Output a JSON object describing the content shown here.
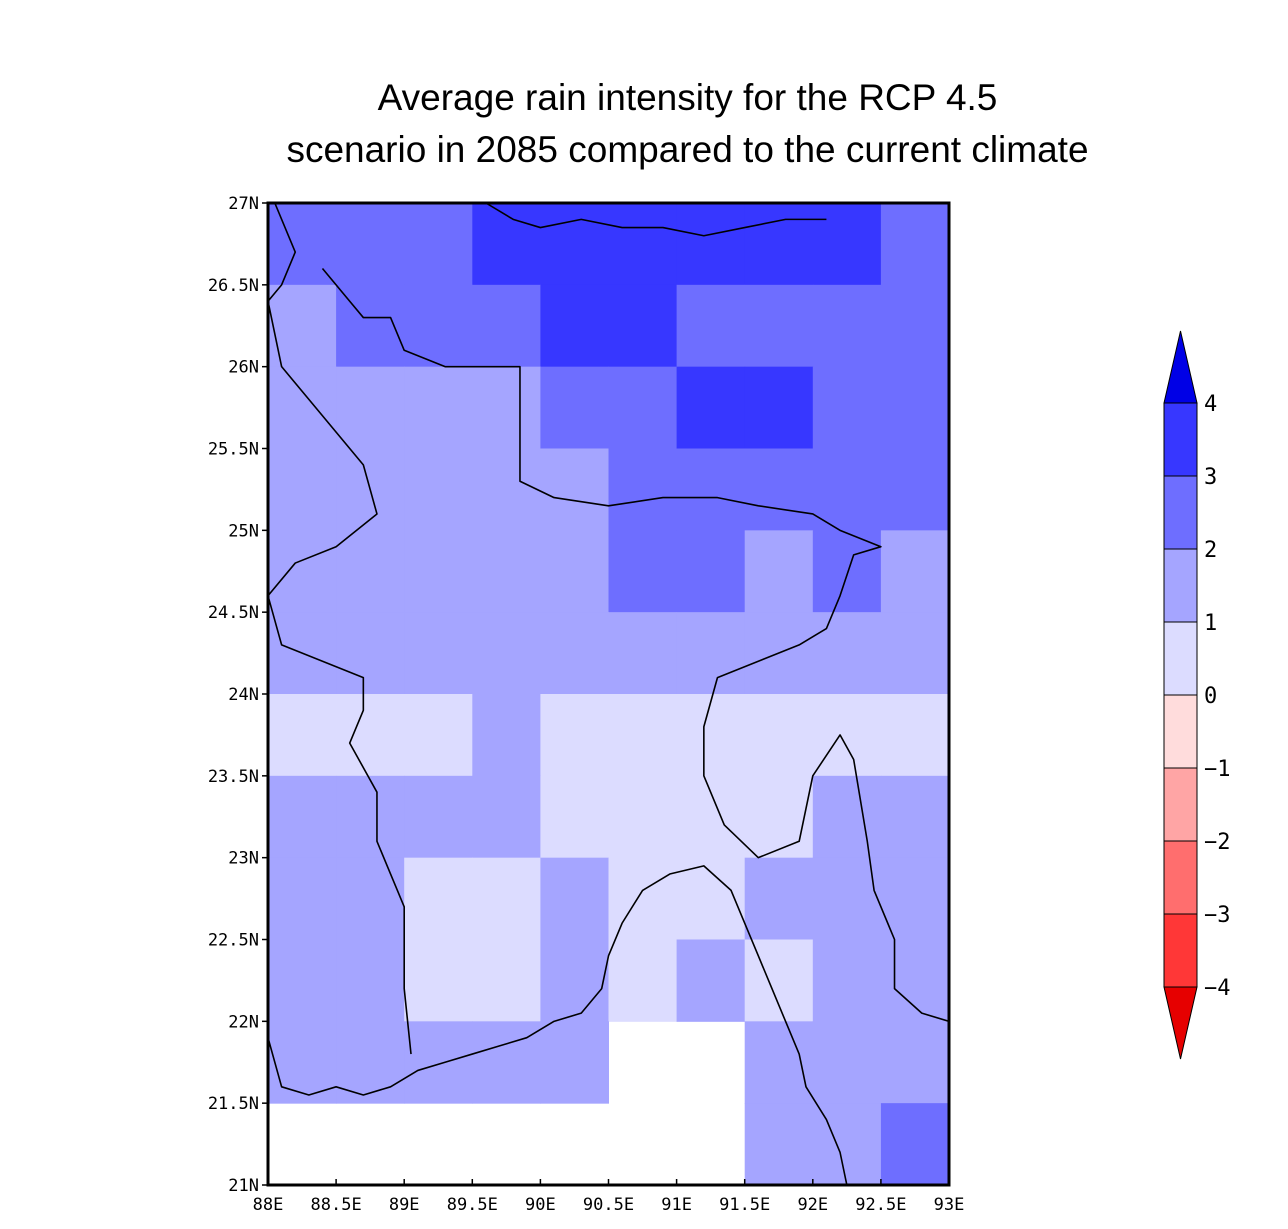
{
  "chart_data": {
    "type": "heatmap",
    "title_lines": [
      "Average rain intensity for the RCP 4.5",
      "scenario in 2085 compared to the current climate"
    ],
    "x_ticks": [
      "88E",
      "88.5E",
      "89E",
      "89.5E",
      "90E",
      "90.5E",
      "91E",
      "91.5E",
      "92E",
      "92.5E",
      "93E"
    ],
    "y_ticks": [
      "21N",
      "21.5N",
      "22N",
      "22.5N",
      "23N",
      "23.5N",
      "24N",
      "24.5N",
      "25N",
      "25.5N",
      "26N",
      "26.5N",
      "27N"
    ],
    "xlim": [
      88,
      93
    ],
    "ylim": [
      21,
      27
    ],
    "grid_cell_degrees": 0.5,
    "colorbar": {
      "labels": [
        "4",
        "3",
        "2",
        "1",
        "0",
        "−1",
        "−2",
        "−3",
        "−4"
      ],
      "levels": [
        4,
        3,
        2,
        1,
        0,
        -1,
        -2,
        -3,
        -4
      ],
      "colors": [
        "#0000e6",
        "#3737ff",
        "#6e6eff",
        "#a5a5ff",
        "#dcdcff",
        "#ffdcdc",
        "#ffa5a5",
        "#ff6e6e",
        "#ff3737",
        "#e60000"
      ]
    },
    "legend_placement": "right (vertical colorbar)",
    "class_colors": {
      "1": "#dcdcff",
      "2": "#a5a5ff",
      "3": "#6e6eff",
      "4": "#3737ff"
    },
    "value_bins": {
      "1": "0 to 1",
      "2": "1 to 2",
      "3": "2 to 3",
      "4": "3 to 4",
      "0": "no data"
    },
    "rows_north_to_south": [
      [
        3,
        3,
        3,
        4,
        4,
        4,
        4,
        4,
        4,
        3
      ],
      [
        2,
        3,
        3,
        3,
        4,
        4,
        3,
        3,
        3,
        3
      ],
      [
        2,
        2,
        2,
        2,
        3,
        3,
        4,
        4,
        3,
        3
      ],
      [
        2,
        2,
        2,
        2,
        2,
        3,
        3,
        3,
        3,
        3
      ],
      [
        2,
        2,
        2,
        2,
        2,
        3,
        3,
        2,
        3,
        2
      ],
      [
        2,
        2,
        2,
        2,
        2,
        2,
        2,
        2,
        2,
        2
      ],
      [
        1,
        1,
        1,
        2,
        1,
        1,
        1,
        1,
        1,
        1
      ],
      [
        2,
        2,
        2,
        2,
        1,
        1,
        1,
        1,
        2,
        2
      ],
      [
        2,
        2,
        1,
        1,
        2,
        1,
        1,
        2,
        2,
        2
      ],
      [
        2,
        2,
        1,
        1,
        2,
        1,
        2,
        1,
        2,
        2
      ],
      [
        2,
        2,
        2,
        2,
        2,
        0,
        0,
        2,
        2,
        2
      ],
      [
        0,
        0,
        0,
        0,
        0,
        0,
        0,
        2,
        2,
        3
      ]
    ],
    "coastline_lonlat": [
      [
        [
          88.0,
          21.9
        ],
        [
          88.1,
          21.6
        ],
        [
          88.3,
          21.55
        ],
        [
          88.5,
          21.6
        ],
        [
          88.7,
          21.55
        ],
        [
          88.9,
          21.6
        ],
        [
          89.1,
          21.7
        ],
        [
          89.3,
          21.75
        ],
        [
          89.5,
          21.8
        ],
        [
          89.7,
          21.85
        ],
        [
          89.9,
          21.9
        ],
        [
          90.1,
          22.0
        ],
        [
          90.3,
          22.05
        ],
        [
          90.45,
          22.2
        ],
        [
          90.5,
          22.4
        ],
        [
          90.6,
          22.6
        ],
        [
          90.75,
          22.8
        ],
        [
          90.95,
          22.9
        ],
        [
          91.2,
          22.95
        ],
        [
          91.4,
          22.8
        ],
        [
          91.5,
          22.6
        ],
        [
          91.6,
          22.4
        ],
        [
          91.7,
          22.2
        ],
        [
          91.8,
          22.0
        ],
        [
          91.9,
          21.8
        ],
        [
          91.95,
          21.6
        ],
        [
          92.1,
          21.4
        ],
        [
          92.2,
          21.2
        ],
        [
          92.25,
          21.0
        ]
      ]
    ],
    "border_lonlat": [
      [
        [
          88.05,
          27.0
        ],
        [
          88.2,
          26.7
        ],
        [
          88.1,
          26.5
        ],
        [
          88.0,
          26.4
        ],
        [
          88.1,
          26.0
        ],
        [
          88.3,
          25.8
        ],
        [
          88.5,
          25.6
        ],
        [
          88.7,
          25.4
        ],
        [
          88.8,
          25.1
        ],
        [
          88.5,
          24.9
        ],
        [
          88.2,
          24.8
        ],
        [
          88.0,
          24.6
        ],
        [
          88.1,
          24.3
        ],
        [
          88.4,
          24.2
        ],
        [
          88.7,
          24.1
        ],
        [
          88.7,
          23.9
        ],
        [
          88.6,
          23.7
        ],
        [
          88.8,
          23.4
        ],
        [
          88.8,
          23.1
        ],
        [
          88.9,
          22.9
        ],
        [
          89.0,
          22.7
        ],
        [
          89.0,
          22.4
        ],
        [
          89.0,
          22.2
        ],
        [
          89.05,
          21.8
        ]
      ],
      [
        [
          89.6,
          27.0
        ],
        [
          89.8,
          26.9
        ],
        [
          90.0,
          26.85
        ],
        [
          90.3,
          26.9
        ],
        [
          90.6,
          26.85
        ],
        [
          90.9,
          26.85
        ],
        [
          91.2,
          26.8
        ],
        [
          91.5,
          26.85
        ],
        [
          91.8,
          26.9
        ],
        [
          92.1,
          26.9
        ]
      ],
      [
        [
          88.4,
          26.6
        ],
        [
          88.6,
          26.4
        ],
        [
          88.7,
          26.3
        ],
        [
          88.9,
          26.3
        ],
        [
          89.0,
          26.1
        ],
        [
          89.3,
          26.0
        ],
        [
          89.6,
          26.0
        ],
        [
          89.85,
          26.0
        ],
        [
          89.85,
          25.7
        ],
        [
          89.85,
          25.3
        ],
        [
          90.1,
          25.2
        ],
        [
          90.5,
          25.15
        ],
        [
          90.9,
          25.2
        ],
        [
          91.3,
          25.2
        ],
        [
          91.6,
          25.15
        ],
        [
          92.0,
          25.1
        ],
        [
          92.2,
          25.0
        ],
        [
          92.5,
          24.9
        ],
        [
          92.3,
          24.85
        ],
        [
          92.2,
          24.6
        ],
        [
          92.1,
          24.4
        ],
        [
          91.9,
          24.3
        ],
        [
          91.6,
          24.2
        ],
        [
          91.3,
          24.1
        ],
        [
          91.2,
          23.8
        ],
        [
          91.2,
          23.5
        ],
        [
          91.35,
          23.2
        ],
        [
          91.6,
          23.0
        ],
        [
          91.9,
          23.1
        ],
        [
          92.0,
          23.5
        ],
        [
          92.2,
          23.75
        ],
        [
          92.3,
          23.6
        ],
        [
          92.4,
          23.1
        ],
        [
          92.45,
          22.8
        ],
        [
          92.6,
          22.5
        ],
        [
          92.6,
          22.2
        ],
        [
          92.8,
          22.05
        ],
        [
          93.0,
          22.0
        ]
      ]
    ]
  }
}
